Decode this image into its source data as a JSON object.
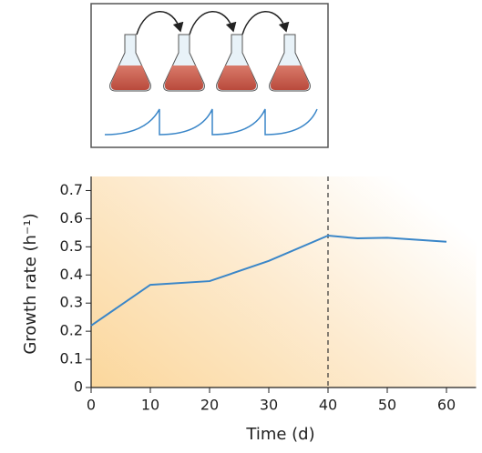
{
  "chart_data": {
    "type": "line",
    "xlabel": "Time (d)",
    "ylabel": "Growth rate (h⁻¹)",
    "x": [
      0,
      10,
      20,
      30,
      40,
      45,
      50,
      60
    ],
    "series": [
      {
        "color": "#3a86c8",
        "values": [
          0.22,
          0.365,
          0.378,
          0.45,
          0.54,
          0.53,
          0.532,
          0.518
        ]
      }
    ],
    "xlim": [
      0,
      65
    ],
    "ylim": [
      0,
      0.75
    ],
    "xticks": [
      0,
      10,
      20,
      30,
      40,
      50,
      60
    ],
    "yticks": [
      {
        "value": 0,
        "label": "0"
      },
      0.1,
      0.2,
      0.3,
      0.4,
      0.5,
      0.6,
      0.7
    ],
    "vline": 40
  }
}
